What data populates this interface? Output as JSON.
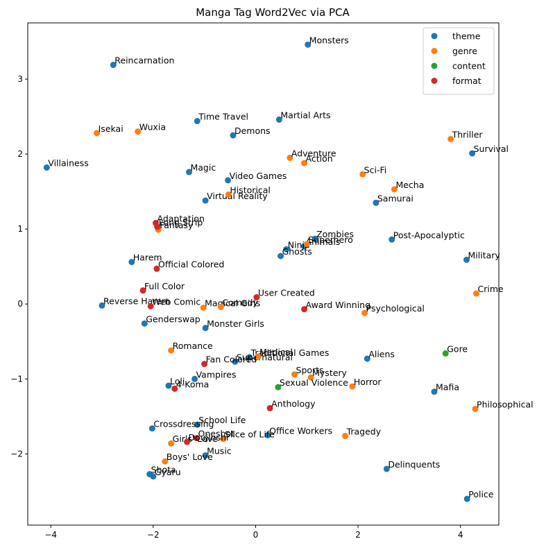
{
  "chart_data": {
    "type": "scatter",
    "title": "Manga Tag Word2Vec via PCA",
    "xlabel": "",
    "ylabel": "",
    "xlim": [
      -4.45,
      4.75
    ],
    "ylim": [
      -2.95,
      3.75
    ],
    "xticks": [
      -4,
      -2,
      0,
      2,
      4
    ],
    "yticks": [
      -2,
      -1,
      0,
      1,
      2,
      3
    ],
    "grid": false,
    "legend_position": "top-right",
    "series": [
      {
        "name": "theme",
        "color": "#1f77b4",
        "points": [
          {
            "label": "Monsters",
            "x": 1.02,
            "y": 3.46
          },
          {
            "label": "Reincarnation",
            "x": -2.78,
            "y": 3.19
          },
          {
            "label": "Time Travel",
            "x": -1.14,
            "y": 2.44
          },
          {
            "label": "Martial Arts",
            "x": 0.46,
            "y": 2.46
          },
          {
            "label": "Demons",
            "x": -0.44,
            "y": 2.25
          },
          {
            "label": "Survival",
            "x": 4.23,
            "y": 2.01
          },
          {
            "label": "Villainess",
            "x": -4.08,
            "y": 1.82
          },
          {
            "label": "Magic",
            "x": -1.3,
            "y": 1.76
          },
          {
            "label": "Video Games",
            "x": -0.54,
            "y": 1.65
          },
          {
            "label": "Virtual Reality",
            "x": -0.98,
            "y": 1.38
          },
          {
            "label": "Samurai",
            "x": 2.35,
            "y": 1.35
          },
          {
            "label": "Zombies",
            "x": 1.16,
            "y": 0.87
          },
          {
            "label": "Post-Apocalyptic",
            "x": 2.66,
            "y": 0.86
          },
          {
            "label": "Animals",
            "x": 0.95,
            "y": 0.77
          },
          {
            "label": "Ninja",
            "x": 0.6,
            "y": 0.73
          },
          {
            "label": "Ghosts",
            "x": 0.49,
            "y": 0.64
          },
          {
            "label": "Harem",
            "x": -2.42,
            "y": 0.56
          },
          {
            "label": "Military",
            "x": 4.12,
            "y": 0.59
          },
          {
            "label": "Reverse Harem",
            "x": -3.0,
            "y": -0.02
          },
          {
            "label": "Genderswap",
            "x": -2.17,
            "y": -0.26
          },
          {
            "label": "Monster Girls",
            "x": -0.98,
            "y": -0.32
          },
          {
            "label": "Traditional Games",
            "x": -0.12,
            "y": -0.71
          },
          {
            "label": "Supernatural",
            "x": -0.4,
            "y": -0.77
          },
          {
            "label": "Aliens",
            "x": 2.18,
            "y": -0.73
          },
          {
            "label": "Vampires",
            "x": -1.19,
            "y": -1.0
          },
          {
            "label": "Loli",
            "x": -1.7,
            "y": -1.09
          },
          {
            "label": "Mafia",
            "x": 3.49,
            "y": -1.17
          },
          {
            "label": "School Life",
            "x": -1.14,
            "y": -1.61
          },
          {
            "label": "Crossdressing",
            "x": -2.02,
            "y": -1.66
          },
          {
            "label": "Office Workers",
            "x": 0.24,
            "y": -1.75
          },
          {
            "label": "Music",
            "x": -0.98,
            "y": -2.02
          },
          {
            "label": "Delinquents",
            "x": 2.56,
            "y": -2.2
          },
          {
            "label": "Shota",
            "x": -2.07,
            "y": -2.27
          },
          {
            "label": "Gyaru",
            "x": -2.0,
            "y": -2.3
          },
          {
            "label": "Police",
            "x": 4.13,
            "y": -2.6
          }
        ]
      },
      {
        "name": "genre",
        "color": "#ff7f0e",
        "points": [
          {
            "label": "Isekai",
            "x": -3.1,
            "y": 2.28
          },
          {
            "label": "Wuxia",
            "x": -2.3,
            "y": 2.3
          },
          {
            "label": "Thriller",
            "x": 3.81,
            "y": 2.2
          },
          {
            "label": "Adventure",
            "x": 0.67,
            "y": 1.95
          },
          {
            "label": "Action",
            "x": 0.95,
            "y": 1.88
          },
          {
            "label": "Sci-Fi",
            "x": 2.09,
            "y": 1.73
          },
          {
            "label": "Historical",
            "x": -0.53,
            "y": 1.46
          },
          {
            "label": "Mecha",
            "x": 2.71,
            "y": 1.53
          },
          {
            "label": "Fantasy",
            "x": -1.9,
            "y": 0.99
          },
          {
            "label": "Superhero",
            "x": 1.0,
            "y": 0.8
          },
          {
            "label": "Crime",
            "x": 4.31,
            "y": 0.14
          },
          {
            "label": "Magical Girls",
            "x": -1.02,
            "y": -0.05
          },
          {
            "label": "Comedy",
            "x": -0.68,
            "y": -0.04
          },
          {
            "label": "Psychological",
            "x": 2.13,
            "y": -0.12
          },
          {
            "label": "Romance",
            "x": -1.65,
            "y": -0.62
          },
          {
            "label": "Medical",
            "x": 0.05,
            "y": -0.7
          },
          {
            "label": "Sports",
            "x": 0.76,
            "y": -0.94
          },
          {
            "label": "Mystery",
            "x": 1.08,
            "y": -0.98
          },
          {
            "label": "Horror",
            "x": 1.89,
            "y": -1.1
          },
          {
            "label": "Philosophical",
            "x": 4.29,
            "y": -1.4
          },
          {
            "label": "Tragedy",
            "x": 1.75,
            "y": -1.76
          },
          {
            "label": "Slice of Life",
            "x": -0.63,
            "y": -1.8
          },
          {
            "label": "Girls' Love",
            "x": -1.65,
            "y": -1.86
          },
          {
            "label": "Boys' Love",
            "x": -1.77,
            "y": -2.1
          }
        ]
      },
      {
        "name": "content",
        "color": "#2ca02c",
        "points": [
          {
            "label": "Gore",
            "x": 3.71,
            "y": -0.66
          },
          {
            "label": "Sexual Violence",
            "x": 0.44,
            "y": -1.11
          }
        ]
      },
      {
        "name": "format",
        "color": "#d62728",
        "points": [
          {
            "label": "Adaptation",
            "x": -1.95,
            "y": 1.08
          },
          {
            "label": "Long Strip",
            "x": -1.92,
            "y": 1.03
          },
          {
            "label": "Official Colored",
            "x": -1.93,
            "y": 0.47
          },
          {
            "label": "Full Color",
            "x": -2.2,
            "y": 0.18
          },
          {
            "label": "User Created",
            "x": 0.02,
            "y": 0.09
          },
          {
            "label": "Web Comic",
            "x": -2.05,
            "y": -0.03
          },
          {
            "label": "Award Winning",
            "x": 0.95,
            "y": -0.07
          },
          {
            "label": "Fan Colored",
            "x": -1.0,
            "y": -0.8
          },
          {
            "label": "4-Koma",
            "x": -1.58,
            "y": -1.13
          },
          {
            "label": "Anthology",
            "x": 0.28,
            "y": -1.39
          },
          {
            "label": "Oneshot",
            "x": -1.15,
            "y": -1.79
          },
          {
            "label": "Doujinshi",
            "x": -1.34,
            "y": -1.84
          }
        ]
      }
    ]
  }
}
